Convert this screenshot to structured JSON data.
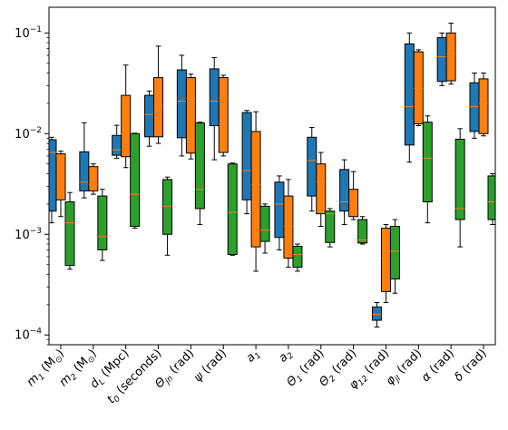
{
  "chart_data": {
    "type": "box",
    "title": "",
    "xlabel": "",
    "ylabel": "",
    "yscale": "log",
    "ylim": [
      8e-05,
      0.18
    ],
    "yticks": [
      {
        "value": 0.0001,
        "base": "10",
        "exp": "−4"
      },
      {
        "value": 0.001,
        "base": "10",
        "exp": "−3"
      },
      {
        "value": 0.01,
        "base": "10",
        "exp": "−2"
      },
      {
        "value": 0.1,
        "base": "10",
        "exp": "−1"
      }
    ],
    "colors": {
      "blue": "#1f77b4",
      "orange": "#ff7f0e",
      "green": "#2ca02c",
      "median": "#ff7f0e"
    },
    "categories": [
      {
        "label": "m1 (M⊙)",
        "main": "m",
        "sub": "1",
        "tail": " (M",
        "sun": "⊙",
        "end": ")"
      },
      {
        "label": "m2 (M⊙)",
        "main": "m",
        "sub": "2",
        "tail": " (M",
        "sun": "⊙",
        "end": ")"
      },
      {
        "label": "dL (Mpc)",
        "main": "d",
        "sub": "L",
        "tail": " (Mpc)"
      },
      {
        "label": "t0 (seconds)",
        "main": "t",
        "sub": "0",
        "tail": " (seconds)"
      },
      {
        "label": "Θjn (rad)",
        "main": "Θ",
        "sub": "jn",
        "tail": " (rad)"
      },
      {
        "label": "ψ (rad)",
        "main": "ψ",
        "sub": "",
        "tail": " (rad)"
      },
      {
        "label": "a1",
        "main": "a",
        "sub": "1",
        "tail": ""
      },
      {
        "label": "a2",
        "main": "a",
        "sub": "2",
        "tail": ""
      },
      {
        "label": "Θ1 (rad)",
        "main": "Θ",
        "sub": "1",
        "tail": " (rad)"
      },
      {
        "label": "Θ2 (rad)",
        "main": "Θ",
        "sub": "2",
        "tail": " (rad)"
      },
      {
        "label": "φ12 (rad)",
        "main": "φ",
        "sub": "12",
        "tail": " (rad)"
      },
      {
        "label": "φjl (rad)",
        "main": "φ",
        "sub": "jl",
        "tail": " (rad)"
      },
      {
        "label": "α (rad)",
        "main": "α",
        "sub": "",
        "tail": " (rad)"
      },
      {
        "label": "δ (rad)",
        "main": "δ",
        "sub": "",
        "tail": " (rad)"
      }
    ],
    "series": [
      {
        "color": "blue",
        "boxes": [
          {
            "whislo": 0.0013,
            "q1": 0.0017,
            "med": 0.0065,
            "q3": 0.0087,
            "whishi": 0.0092
          },
          {
            "whislo": 0.0023,
            "q1": 0.0027,
            "med": 0.0033,
            "q3": 0.0066,
            "whishi": 0.0128
          },
          {
            "whislo": 0.0057,
            "q1": 0.0061,
            "med": 0.0069,
            "q3": 0.0096,
            "whishi": 0.0121
          },
          {
            "whislo": 0.0075,
            "q1": 0.0093,
            "med": 0.0155,
            "q3": 0.024,
            "whishi": 0.0265
          },
          {
            "whislo": 0.006,
            "q1": 0.0091,
            "med": 0.021,
            "q3": 0.043,
            "whishi": 0.06
          },
          {
            "whislo": 0.0055,
            "q1": 0.012,
            "med": 0.021,
            "q3": 0.044,
            "whishi": 0.057
          },
          {
            "whislo": 0.0016,
            "q1": 0.0022,
            "med": 0.0043,
            "q3": 0.0162,
            "whishi": 0.017
          },
          {
            "whislo": 0.0007,
            "q1": 0.00093,
            "med": 0.002,
            "q3": 0.0033,
            "whishi": 0.0038
          },
          {
            "whislo": 0.0017,
            "q1": 0.0024,
            "med": 0.0054,
            "q3": 0.0092,
            "whishi": 0.0115
          },
          {
            "whislo": 0.00125,
            "q1": 0.0017,
            "med": 0.0021,
            "q3": 0.0044,
            "whishi": 0.0055
          },
          {
            "whislo": 0.00012,
            "q1": 0.00014,
            "med": 0.00016,
            "q3": 0.00019,
            "whishi": 0.00021
          },
          {
            "whislo": 0.0052,
            "q1": 0.0077,
            "med": 0.0185,
            "q3": 0.078,
            "whishi": 0.1
          },
          {
            "whislo": 0.03,
            "q1": 0.033,
            "med": 0.058,
            "q3": 0.09,
            "whishi": 0.1
          },
          {
            "whislo": 0.009,
            "q1": 0.0105,
            "med": 0.0185,
            "q3": 0.032,
            "whishi": 0.04
          }
        ]
      },
      {
        "color": "orange",
        "boxes": [
          {
            "whislo": 0.0015,
            "q1": 0.0022,
            "med": 0.006,
            "q3": 0.0063,
            "whishi": 0.0067
          },
          {
            "whislo": 0.0025,
            "q1": 0.0027,
            "med": 0.0031,
            "q3": 0.0047,
            "whishi": 0.005
          },
          {
            "whislo": 0.0046,
            "q1": 0.0059,
            "med": 0.01,
            "q3": 0.024,
            "whishi": 0.048
          },
          {
            "whislo": 0.008,
            "q1": 0.0093,
            "med": 0.019,
            "q3": 0.036,
            "whishi": 0.074
          },
          {
            "whislo": 0.0056,
            "q1": 0.0064,
            "med": 0.0225,
            "q3": 0.036,
            "whishi": 0.039
          },
          {
            "whislo": 0.006,
            "q1": 0.0065,
            "med": 0.0225,
            "q3": 0.036,
            "whishi": 0.038
          },
          {
            "whislo": 0.00043,
            "q1": 0.00075,
            "med": 0.0031,
            "q3": 0.0105,
            "whishi": 0.0165
          },
          {
            "whislo": 0.00047,
            "q1": 0.00058,
            "med": 0.0012,
            "q3": 0.0024,
            "whishi": 0.0035
          },
          {
            "whislo": 0.0012,
            "q1": 0.0016,
            "med": 0.0033,
            "q3": 0.005,
            "whishi": 0.0065
          },
          {
            "whislo": 0.0014,
            "q1": 0.0015,
            "med": 0.0017,
            "q3": 0.0028,
            "whishi": 0.0042
          },
          {
            "whislo": 0.00021,
            "q1": 0.00027,
            "med": 0.00058,
            "q3": 0.00115,
            "whishi": 0.00125
          },
          {
            "whislo": 0.012,
            "q1": 0.0125,
            "med": 0.028,
            "q3": 0.065,
            "whishi": 0.068
          },
          {
            "whislo": 0.031,
            "q1": 0.0335,
            "med": 0.062,
            "q3": 0.1,
            "whishi": 0.125
          },
          {
            "whislo": 0.0095,
            "q1": 0.01,
            "med": 0.02,
            "q3": 0.035,
            "whishi": 0.04
          }
        ]
      },
      {
        "color": "green",
        "boxes": [
          {
            "whislo": 0.00045,
            "q1": 0.00049,
            "med": 0.0013,
            "q3": 0.0021,
            "whishi": 0.0026
          },
          {
            "whislo": 0.00055,
            "q1": 0.0007,
            "med": 0.00095,
            "q3": 0.0024,
            "whishi": 0.0028
          },
          {
            "whislo": 0.00115,
            "q1": 0.0012,
            "med": 0.0025,
            "q3": 0.01,
            "whishi": 0.0101
          },
          {
            "whislo": 0.00062,
            "q1": 0.001,
            "med": 0.0019,
            "q3": 0.0035,
            "whishi": 0.0037
          },
          {
            "whislo": 0.00125,
            "q1": 0.0018,
            "med": 0.0028,
            "q3": 0.0128,
            "whishi": 0.013
          },
          {
            "whislo": 0.00062,
            "q1": 0.00063,
            "med": 0.00165,
            "q3": 0.005,
            "whishi": 0.0051
          },
          {
            "whislo": 0.00065,
            "q1": 0.00085,
            "med": 0.0011,
            "q3": 0.0019,
            "whishi": 0.002
          },
          {
            "whislo": 0.00043,
            "q1": 0.00047,
            "med": 0.00063,
            "q3": 0.00076,
            "whishi": 0.0008
          },
          {
            "whislo": 0.00075,
            "q1": 0.00083,
            "med": 0.0016,
            "q3": 0.0017,
            "whishi": 0.0018
          },
          {
            "whislo": 0.0008,
            "q1": 0.00082,
            "med": 0.00088,
            "q3": 0.0014,
            "whishi": 0.0015
          },
          {
            "whislo": 0.00026,
            "q1": 0.00036,
            "med": 0.00068,
            "q3": 0.0012,
            "whishi": 0.0014
          },
          {
            "whislo": 0.0013,
            "q1": 0.0021,
            "med": 0.0057,
            "q3": 0.013,
            "whishi": 0.015
          },
          {
            "whislo": 0.00075,
            "q1": 0.0014,
            "med": 0.0018,
            "q3": 0.0088,
            "whishi": 0.0112
          },
          {
            "whislo": 0.00125,
            "q1": 0.0014,
            "med": 0.0021,
            "q3": 0.0038,
            "whishi": 0.004
          }
        ]
      }
    ]
  }
}
